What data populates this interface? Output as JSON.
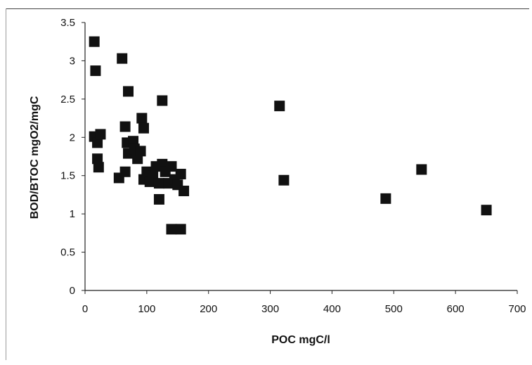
{
  "chart_data": {
    "type": "scatter",
    "title": "",
    "xlabel": "POC mgC/l",
    "ylabel": "BOD/BTOC mgO2/mgC",
    "xlim": [
      0,
      700
    ],
    "ylim": [
      0,
      3.5
    ],
    "x_ticks": [
      0,
      100,
      200,
      300,
      400,
      500,
      600,
      700
    ],
    "y_ticks": [
      0,
      0.5,
      1,
      1.5,
      2,
      2.5,
      3,
      3.5
    ],
    "x_tick_labels": [
      "0",
      "100",
      "200",
      "300",
      "400",
      "500",
      "600",
      "700"
    ],
    "y_tick_labels": [
      "0",
      "0.5",
      "1",
      "1.5",
      "2",
      "2.5",
      "3",
      "3.5"
    ],
    "grid": false,
    "legend": "none",
    "marker": "square",
    "marker_color": "#111111",
    "points": [
      {
        "x": 15,
        "y": 3.25
      },
      {
        "x": 17,
        "y": 2.87
      },
      {
        "x": 15,
        "y": 2.01
      },
      {
        "x": 20,
        "y": 1.93
      },
      {
        "x": 20,
        "y": 1.72
      },
      {
        "x": 22,
        "y": 1.61
      },
      {
        "x": 25,
        "y": 2.04
      },
      {
        "x": 55,
        "y": 1.47
      },
      {
        "x": 60,
        "y": 3.03
      },
      {
        "x": 65,
        "y": 2.14
      },
      {
        "x": 70,
        "y": 2.6
      },
      {
        "x": 68,
        "y": 1.93
      },
      {
        "x": 70,
        "y": 1.79
      },
      {
        "x": 65,
        "y": 1.55
      },
      {
        "x": 78,
        "y": 1.95
      },
      {
        "x": 80,
        "y": 1.85
      },
      {
        "x": 85,
        "y": 1.72
      },
      {
        "x": 90,
        "y": 1.82
      },
      {
        "x": 92,
        "y": 2.25
      },
      {
        "x": 95,
        "y": 2.12
      },
      {
        "x": 95,
        "y": 1.45
      },
      {
        "x": 100,
        "y": 1.55
      },
      {
        "x": 105,
        "y": 1.42
      },
      {
        "x": 110,
        "y": 1.5
      },
      {
        "x": 115,
        "y": 1.62
      },
      {
        "x": 120,
        "y": 1.4
      },
      {
        "x": 120,
        "y": 1.19
      },
      {
        "x": 125,
        "y": 2.48
      },
      {
        "x": 125,
        "y": 1.65
      },
      {
        "x": 130,
        "y": 1.55
      },
      {
        "x": 135,
        "y": 1.4
      },
      {
        "x": 140,
        "y": 1.62
      },
      {
        "x": 140,
        "y": 0.8
      },
      {
        "x": 145,
        "y": 1.45
      },
      {
        "x": 150,
        "y": 1.38
      },
      {
        "x": 155,
        "y": 1.52
      },
      {
        "x": 155,
        "y": 0.8
      },
      {
        "x": 160,
        "y": 1.3
      },
      {
        "x": 315,
        "y": 2.41
      },
      {
        "x": 322,
        "y": 1.44
      },
      {
        "x": 487,
        "y": 1.2
      },
      {
        "x": 545,
        "y": 1.58
      },
      {
        "x": 650,
        "y": 1.05
      }
    ]
  }
}
